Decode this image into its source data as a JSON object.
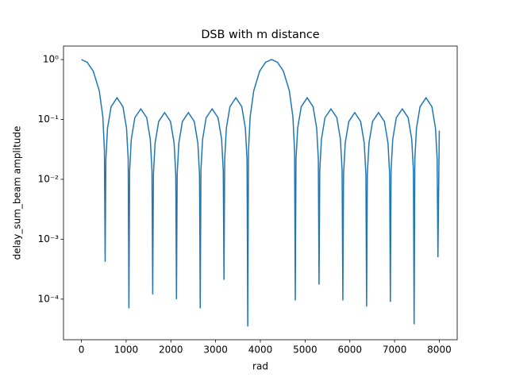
{
  "chart_data": {
    "type": "line",
    "title": "DSB with m distance",
    "xlabel": "rad",
    "ylabel": "delay_sum_beam amplitude",
    "log_y": true,
    "xlim": [
      -400,
      8400
    ],
    "xticks": [
      0,
      1000,
      2000,
      3000,
      4000,
      5000,
      6000,
      7000,
      8000
    ],
    "ylim": [
      2.1e-05,
      1.68
    ],
    "yticks": [
      {
        "value": 1,
        "label": "10⁰"
      },
      {
        "value": 0.1,
        "label": "10⁻¹"
      },
      {
        "value": 0.01,
        "label": "10⁻²"
      },
      {
        "value": 0.001,
        "label": "10⁻³"
      },
      {
        "value": 0.0001,
        "label": "10⁻⁴"
      }
    ],
    "x": [
      0,
      130,
      265,
      400,
      480,
      515,
      531,
      547,
      584,
      664,
      797,
      929,
      1009,
      1046,
      1062,
      1078,
      1115,
      1195,
      1328,
      1460,
      1540,
      1577,
      1594,
      1610,
      1647,
      1727,
      1860,
      1992,
      2072,
      2109,
      2125,
      2141,
      2178,
      2258,
      2391,
      2523,
      2603,
      2640,
      2656,
      2672,
      2709,
      2789,
      2922,
      3054,
      3134,
      3171,
      3187,
      3203,
      3240,
      3320,
      3453,
      3585,
      3665,
      3702,
      3719,
      3735,
      3772,
      3852,
      3985,
      4117,
      4250,
      4383,
      4515,
      4648,
      4728,
      4765,
      4781,
      4797,
      4834,
      4914,
      5047,
      5179,
      5259,
      5296,
      5312,
      5328,
      5365,
      5445,
      5578,
      5710,
      5790,
      5827,
      5844,
      5860,
      5897,
      5977,
      6110,
      6242,
      6322,
      6359,
      6375,
      6391,
      6428,
      6508,
      6641,
      6773,
      6853,
      6890,
      6906,
      6922,
      6959,
      7039,
      7172,
      7304,
      7384,
      7421,
      7437,
      7453,
      7490,
      7570,
      7703,
      7835,
      7915,
      7952,
      7969,
      8000
    ],
    "series": [
      {
        "color": "#1f77b4",
        "values": [
          1.0,
          0.9,
          0.64,
          0.3,
          0.11,
          0.03,
          0.00042,
          0.0216,
          0.0713,
          0.163,
          0.23,
          0.163,
          0.0713,
          0.0216,
          7e-05,
          0.0141,
          0.0465,
          0.107,
          0.15,
          0.107,
          0.0465,
          0.0141,
          0.00012,
          0.0122,
          0.0403,
          0.0923,
          0.13,
          0.0923,
          0.0403,
          0.0122,
          0.0001,
          0.0122,
          0.0403,
          0.0923,
          0.13,
          0.0923,
          0.0403,
          0.0122,
          7e-05,
          0.0141,
          0.0465,
          0.107,
          0.15,
          0.107,
          0.0465,
          0.0141,
          0.00021,
          0.0216,
          0.0713,
          0.163,
          0.23,
          0.163,
          0.0713,
          0.0216,
          3.5e-05,
          0.03,
          0.11,
          0.3,
          0.64,
          0.9,
          1.0,
          0.9,
          0.64,
          0.3,
          0.11,
          0.03,
          9.5e-05,
          0.0216,
          0.0713,
          0.163,
          0.23,
          0.163,
          0.0713,
          0.0216,
          0.000175,
          0.0141,
          0.0465,
          0.107,
          0.15,
          0.107,
          0.0465,
          0.0141,
          9.5e-05,
          0.0122,
          0.0403,
          0.0923,
          0.13,
          0.0923,
          0.0403,
          0.0122,
          7.5e-05,
          0.0122,
          0.0403,
          0.0923,
          0.13,
          0.0923,
          0.0403,
          0.0122,
          9e-05,
          0.0141,
          0.0465,
          0.107,
          0.15,
          0.107,
          0.0465,
          0.0141,
          3.8e-05,
          0.0216,
          0.0713,
          0.163,
          0.23,
          0.163,
          0.0713,
          0.0216,
          0.0005,
          0.065
        ]
      }
    ]
  }
}
